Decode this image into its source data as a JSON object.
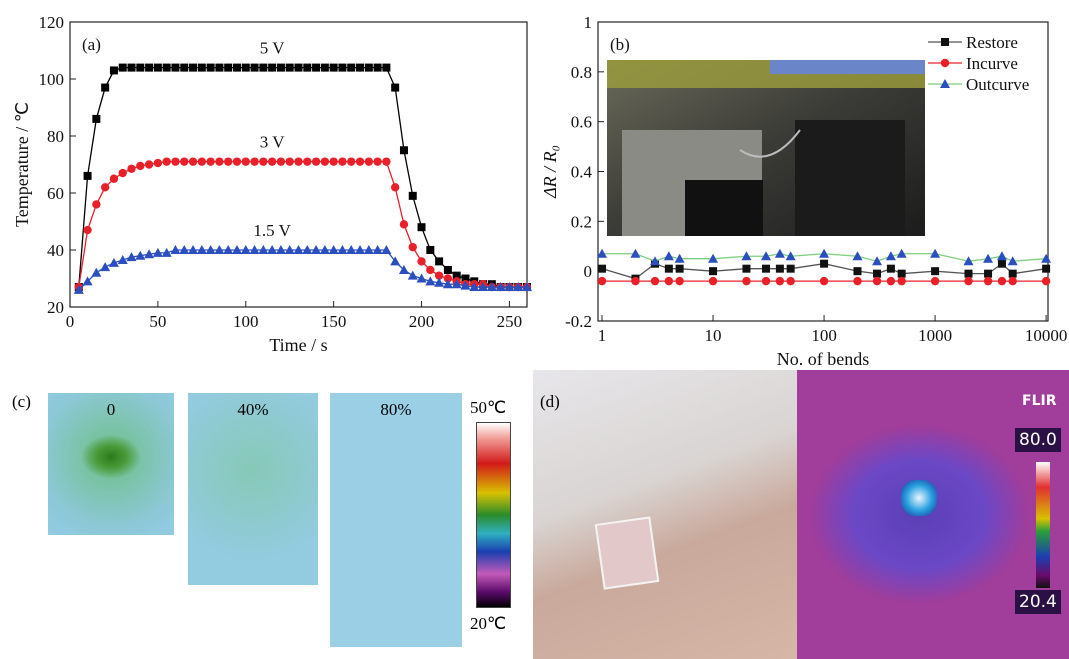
{
  "chart_data": [
    {
      "type": "line",
      "panel_label": "(a)",
      "x_label": "Time / s",
      "y_label": "Temperature / ℃",
      "xlim": [
        0,
        260
      ],
      "ylim": [
        20,
        120
      ],
      "xticks": [
        0,
        50,
        100,
        150,
        200,
        250
      ],
      "yticks": [
        20,
        40,
        60,
        80,
        100,
        120
      ],
      "log_x": false,
      "grid": false,
      "legend": false,
      "names_on_curves": true,
      "x": [
        5,
        10,
        15,
        20,
        25,
        30,
        35,
        40,
        45,
        50,
        55,
        60,
        65,
        70,
        75,
        80,
        85,
        90,
        95,
        100,
        105,
        110,
        115,
        120,
        125,
        130,
        135,
        140,
        145,
        150,
        155,
        160,
        165,
        170,
        175,
        180,
        185,
        190,
        195,
        200,
        205,
        210,
        215,
        220,
        225,
        230,
        235,
        240,
        245,
        250,
        255,
        260
      ],
      "series": [
        {
          "name": "5 V",
          "color": "#000000",
          "line_color": "#000000",
          "marker": "square",
          "values": [
            27,
            66,
            86,
            97,
            103,
            104,
            104,
            104,
            104,
            104,
            104,
            104,
            104,
            104,
            104,
            104,
            104,
            104,
            104,
            104,
            104,
            104,
            104,
            104,
            104,
            104,
            104,
            104,
            104,
            104,
            104,
            104,
            104,
            104,
            104,
            104,
            97,
            75,
            59,
            48,
            40,
            36,
            33,
            31,
            30,
            29,
            28,
            28,
            27,
            27,
            27,
            27
          ]
        },
        {
          "name": "3 V",
          "color": "#e8202a",
          "line_color": "#e8202a",
          "marker": "circle",
          "values": [
            27,
            47,
            56,
            62,
            65,
            67,
            68.5,
            69.5,
            70,
            70.5,
            71,
            71,
            71,
            71,
            71,
            71,
            71,
            71,
            71,
            71,
            71,
            71,
            71,
            71,
            71,
            71,
            71,
            71,
            71,
            71,
            71,
            71,
            71,
            71,
            71,
            71,
            62,
            49,
            41,
            36,
            33,
            31,
            30,
            29,
            28,
            28,
            28,
            27,
            27,
            27,
            27,
            27
          ]
        },
        {
          "name": "1.5 V",
          "color": "#2c4fbf",
          "line_color": "#2c4fbf",
          "marker": "triangle",
          "values": [
            26,
            29,
            32,
            34,
            35.5,
            36.5,
            37.5,
            38,
            38.5,
            39,
            39,
            40,
            40,
            40,
            40,
            40,
            40,
            40,
            40,
            40,
            40,
            40,
            40,
            40,
            40,
            40,
            40,
            40,
            40,
            40,
            40,
            40,
            40,
            40,
            40,
            40,
            36,
            33,
            31,
            30,
            29,
            28.5,
            28,
            28,
            27.5,
            27,
            27,
            27,
            27,
            27,
            27,
            27
          ]
        }
      ]
    },
    {
      "type": "line",
      "panel_label": "(b)",
      "x_label": "No. of bends",
      "y_label": "ΔR / R₀",
      "xlim": [
        0.92,
        10400
      ],
      "ylim": [
        -0.2,
        1.0
      ],
      "xticks": [
        1,
        10,
        100,
        1000,
        10000
      ],
      "yticks": [
        -0.2,
        0,
        0.2,
        0.4,
        0.6,
        0.8,
        1.0
      ],
      "log_x": true,
      "grid": false,
      "legend": "upper right",
      "names_on_curves": false,
      "x": [
        1,
        2,
        3,
        4,
        5,
        10,
        20,
        30,
        40,
        50,
        100,
        200,
        300,
        400,
        500,
        1000,
        2000,
        3000,
        4000,
        5000,
        10000
      ],
      "series": [
        {
          "name": "Restore",
          "color": "#111111",
          "line_color": "#555555",
          "marker": "square",
          "values": [
            0.01,
            -0.03,
            0.03,
            0.01,
            0.01,
            0.0,
            0.01,
            0.01,
            0.01,
            0.01,
            0.03,
            0.0,
            -0.01,
            0.01,
            -0.01,
            0.0,
            -0.01,
            -0.01,
            0.03,
            -0.01,
            0.01
          ]
        },
        {
          "name": "Incurve",
          "color": "#e8202a",
          "line_color": "#e8202a",
          "marker": "circle",
          "values": [
            -0.04,
            -0.04,
            -0.04,
            -0.04,
            -0.04,
            -0.04,
            -0.04,
            -0.04,
            -0.04,
            -0.04,
            -0.04,
            -0.04,
            -0.04,
            -0.04,
            -0.04,
            -0.04,
            -0.04,
            -0.04,
            -0.04,
            -0.04,
            -0.04
          ]
        },
        {
          "name": "Outcurve",
          "color": "#2c4fbf",
          "line_color": "#7dcf7d",
          "marker": "triangle",
          "values": [
            0.07,
            0.07,
            0.04,
            0.06,
            0.05,
            0.05,
            0.06,
            0.06,
            0.07,
            0.06,
            0.07,
            0.06,
            0.04,
            0.06,
            0.07,
            0.07,
            0.04,
            0.05,
            0.06,
            0.04,
            0.05
          ]
        }
      ]
    }
  ],
  "panel_c": {
    "label": "(c)",
    "images": [
      "0",
      "40%",
      "80%"
    ],
    "scale_max": "50℃",
    "scale_min": "20℃"
  },
  "panel_d": {
    "label": "(d)",
    "brand": "FLIR",
    "scale_max": "80.0",
    "scale_min": "20.4"
  }
}
